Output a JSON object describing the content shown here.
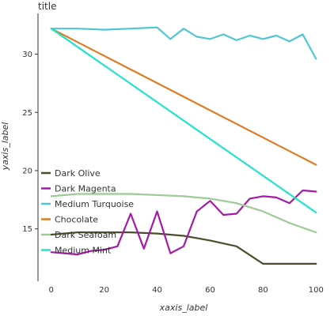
{
  "chart_data": {
    "type": "line",
    "title": "title",
    "xlabel": "xaxis_label",
    "ylabel": "yaxis_label",
    "xlim": [
      -5,
      105
    ],
    "ylim": [
      10.5,
      33.5
    ],
    "x_ticks": [
      0,
      20,
      40,
      60,
      80,
      100
    ],
    "y_ticks": [
      15,
      20,
      25,
      30
    ],
    "grid": false,
    "legend_position": "bottom-left",
    "series": [
      {
        "name": "Dark Olive",
        "color": "#4d4d2e",
        "x": [
          0,
          10,
          20,
          30,
          40,
          50,
          60,
          70,
          80,
          90,
          100
        ],
        "y": [
          14.5,
          14.7,
          14.7,
          14.7,
          14.6,
          14.4,
          14.0,
          13.5,
          12.0,
          12.0,
          12.0
        ]
      },
      {
        "name": "Dark Magenta",
        "color": "#a51aa5",
        "x": [
          0,
          10,
          15,
          20,
          25,
          30,
          35,
          40,
          45,
          50,
          55,
          60,
          65,
          70,
          75,
          80,
          85,
          90,
          95,
          100
        ],
        "y": [
          13.0,
          12.8,
          13.1,
          13.2,
          13.5,
          16.3,
          13.3,
          16.5,
          12.9,
          13.5,
          16.5,
          17.4,
          16.2,
          16.3,
          17.6,
          17.8,
          17.7,
          17.2,
          18.3,
          18.2
        ]
      },
      {
        "name": "Medium Turquoise",
        "color": "#4fc7d3",
        "x": [
          0,
          10,
          20,
          30,
          40,
          45,
          50,
          55,
          60,
          65,
          70,
          75,
          80,
          85,
          90,
          95,
          100
        ],
        "y": [
          32.2,
          32.2,
          32.1,
          32.2,
          32.3,
          31.3,
          32.2,
          31.5,
          31.3,
          31.7,
          31.2,
          31.6,
          31.3,
          31.6,
          31.1,
          31.7,
          29.6
        ]
      },
      {
        "name": "Chocolate",
        "color": "#e07b22",
        "x": [
          0,
          100
        ],
        "y": [
          32.2,
          20.5
        ]
      },
      {
        "name": "Medium Mint",
        "color": "#22e3cd",
        "x": [
          0,
          100
        ],
        "y": [
          32.2,
          16.4
        ]
      },
      {
        "name": "Dark Seafoam",
        "color": "#9ccb95",
        "x": [
          0,
          10,
          20,
          30,
          40,
          50,
          60,
          70,
          80,
          90,
          100
        ],
        "y": [
          17.8,
          18.0,
          18.0,
          18.0,
          17.9,
          17.8,
          17.6,
          17.2,
          16.5,
          15.5,
          14.7
        ]
      }
    ]
  }
}
